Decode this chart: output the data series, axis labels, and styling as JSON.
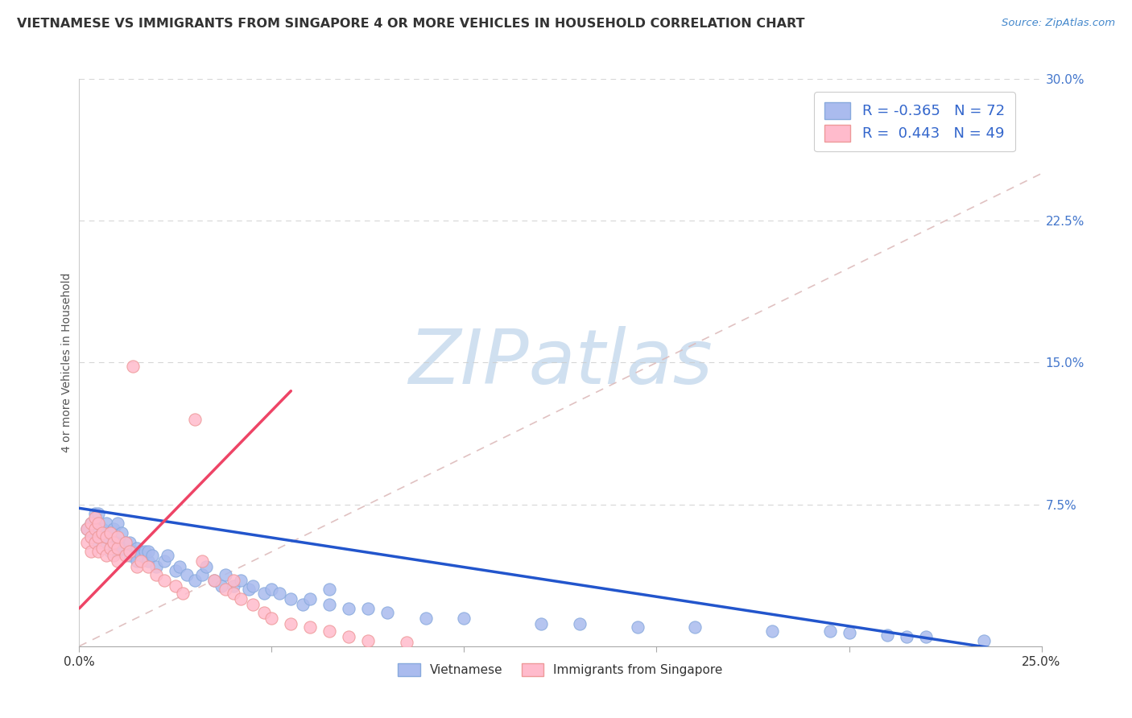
{
  "title": "VIETNAMESE VS IMMIGRANTS FROM SINGAPORE 4 OR MORE VEHICLES IN HOUSEHOLD CORRELATION CHART",
  "source_text": "Source: ZipAtlas.com",
  "ylabel": "4 or more Vehicles in Household",
  "legend_labels": [
    "Vietnamese",
    "Immigrants from Singapore"
  ],
  "r_values": [
    -0.365,
    0.443
  ],
  "n_values": [
    72,
    49
  ],
  "r_color": "#3366cc",
  "scatter_color_blue": "#aabbee",
  "scatter_edge_blue": "#88aadd",
  "scatter_color_pink": "#ffbbcc",
  "scatter_edge_pink": "#ee9999",
  "line_color_blue": "#2255cc",
  "line_color_pink": "#ee4466",
  "diagonal_color": "#ddbbbb",
  "watermark_text": "ZIPatlas",
  "watermark_color": "#d0e0f0",
  "xlim": [
    0.0,
    0.25
  ],
  "ylim": [
    0.0,
    0.3
  ],
  "background_color": "#ffffff",
  "grid_color": "#cccccc",
  "title_color": "#333333",
  "title_fontsize": 11.5,
  "blue_x": [
    0.002,
    0.003,
    0.003,
    0.004,
    0.004,
    0.005,
    0.005,
    0.005,
    0.006,
    0.006,
    0.007,
    0.007,
    0.008,
    0.008,
    0.009,
    0.009,
    0.01,
    0.01,
    0.01,
    0.011,
    0.011,
    0.012,
    0.013,
    0.013,
    0.014,
    0.015,
    0.015,
    0.016,
    0.017,
    0.018,
    0.018,
    0.019,
    0.02,
    0.022,
    0.023,
    0.025,
    0.026,
    0.028,
    0.03,
    0.032,
    0.033,
    0.035,
    0.037,
    0.038,
    0.04,
    0.042,
    0.044,
    0.045,
    0.048,
    0.05,
    0.052,
    0.055,
    0.058,
    0.06,
    0.065,
    0.065,
    0.07,
    0.075,
    0.08,
    0.09,
    0.1,
    0.12,
    0.13,
    0.145,
    0.16,
    0.18,
    0.195,
    0.2,
    0.21,
    0.215,
    0.22,
    0.235
  ],
  "blue_y": [
    0.062,
    0.058,
    0.065,
    0.055,
    0.07,
    0.06,
    0.065,
    0.07,
    0.055,
    0.062,
    0.058,
    0.065,
    0.05,
    0.06,
    0.055,
    0.062,
    0.05,
    0.055,
    0.065,
    0.052,
    0.06,
    0.055,
    0.048,
    0.055,
    0.05,
    0.045,
    0.052,
    0.048,
    0.05,
    0.045,
    0.05,
    0.048,
    0.042,
    0.045,
    0.048,
    0.04,
    0.042,
    0.038,
    0.035,
    0.038,
    0.042,
    0.035,
    0.032,
    0.038,
    0.032,
    0.035,
    0.03,
    0.032,
    0.028,
    0.03,
    0.028,
    0.025,
    0.022,
    0.025,
    0.022,
    0.03,
    0.02,
    0.02,
    0.018,
    0.015,
    0.015,
    0.012,
    0.012,
    0.01,
    0.01,
    0.008,
    0.008,
    0.007,
    0.006,
    0.005,
    0.005,
    0.003
  ],
  "pink_x": [
    0.002,
    0.002,
    0.003,
    0.003,
    0.003,
    0.004,
    0.004,
    0.004,
    0.005,
    0.005,
    0.005,
    0.006,
    0.006,
    0.007,
    0.007,
    0.008,
    0.008,
    0.009,
    0.009,
    0.01,
    0.01,
    0.01,
    0.012,
    0.012,
    0.013,
    0.014,
    0.015,
    0.016,
    0.018,
    0.02,
    0.022,
    0.025,
    0.027,
    0.03,
    0.032,
    0.035,
    0.038,
    0.04,
    0.04,
    0.042,
    0.045,
    0.048,
    0.05,
    0.055,
    0.06,
    0.065,
    0.07,
    0.075,
    0.085
  ],
  "pink_y": [
    0.055,
    0.062,
    0.05,
    0.058,
    0.065,
    0.055,
    0.062,
    0.068,
    0.05,
    0.058,
    0.065,
    0.052,
    0.06,
    0.048,
    0.058,
    0.052,
    0.06,
    0.048,
    0.055,
    0.045,
    0.052,
    0.058,
    0.048,
    0.055,
    0.05,
    0.148,
    0.042,
    0.045,
    0.042,
    0.038,
    0.035,
    0.032,
    0.028,
    0.12,
    0.045,
    0.035,
    0.03,
    0.028,
    0.035,
    0.025,
    0.022,
    0.018,
    0.015,
    0.012,
    0.01,
    0.008,
    0.005,
    0.003,
    0.002
  ],
  "blue_trend_x0": 0.0,
  "blue_trend_x1": 0.25,
  "blue_trend_y0": 0.073,
  "blue_trend_y1": -0.005,
  "pink_trend_x0": 0.0,
  "pink_trend_x1": 0.055,
  "pink_trend_y0": 0.02,
  "pink_trend_y1": 0.135
}
